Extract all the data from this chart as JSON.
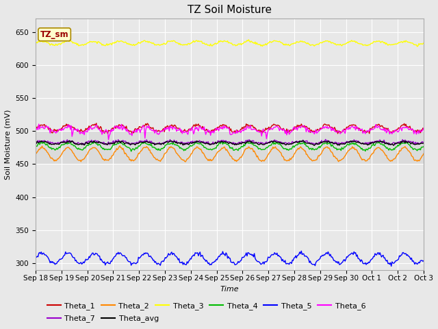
{
  "title": "TZ Soil Moisture",
  "xlabel": "Time",
  "ylabel": "Soil Moisture (mV)",
  "annotation": "TZ_sm",
  "ylim": [
    290,
    670
  ],
  "yticks": [
    300,
    350,
    400,
    450,
    500,
    550,
    600,
    650
  ],
  "x_labels": [
    "Sep 18",
    "Sep 19",
    "Sep 20",
    "Sep 21",
    "Sep 22",
    "Sep 23",
    "Sep 24",
    "Sep 25",
    "Sep 26",
    "Sep 27",
    "Sep 28",
    "Sep 29",
    "Sep 30",
    "Oct 1",
    "Oct 2",
    "Oct 3"
  ],
  "n_points": 480,
  "background_color": "#e8e8e8",
  "fig_bg_color": "#e8e8e8",
  "lines": {
    "Theta_1": {
      "color": "#cc0000",
      "base": 504,
      "amp": 5,
      "period": 1.0,
      "noise": 1.5
    },
    "Theta_2": {
      "color": "#ff8800",
      "base": 465,
      "amp": 10,
      "period": 1.0,
      "noise": 1.0
    },
    "Theta_3": {
      "color": "#ffff00",
      "base": 633,
      "amp": 3,
      "period": 1.0,
      "noise": 0.8
    },
    "Theta_4": {
      "color": "#00bb00",
      "base": 477,
      "amp": 5,
      "period": 1.0,
      "noise": 1.0
    },
    "Theta_5": {
      "color": "#0000ff",
      "base": 307,
      "amp": 8,
      "period": 1.0,
      "noise": 1.5
    },
    "Theta_6": {
      "color": "#ff00ff",
      "base": 502,
      "amp": 4,
      "period": 1.0,
      "noise": 2.0
    },
    "Theta_7": {
      "color": "#9900cc",
      "base": 483,
      "amp": 2,
      "period": 1.0,
      "noise": 1.0
    },
    "Theta_avg": {
      "color": "#000000",
      "base": 482,
      "amp": 2,
      "period": 1.0,
      "noise": 0.8
    }
  },
  "legend_order_row1": [
    "Theta_1",
    "Theta_2",
    "Theta_3",
    "Theta_4",
    "Theta_5",
    "Theta_6"
  ],
  "legend_order_row2": [
    "Theta_7",
    "Theta_avg"
  ],
  "grid_color": "#ffffff",
  "title_fontsize": 11,
  "axis_label_fontsize": 8,
  "tick_fontsize": 7.5,
  "legend_fontsize": 8
}
